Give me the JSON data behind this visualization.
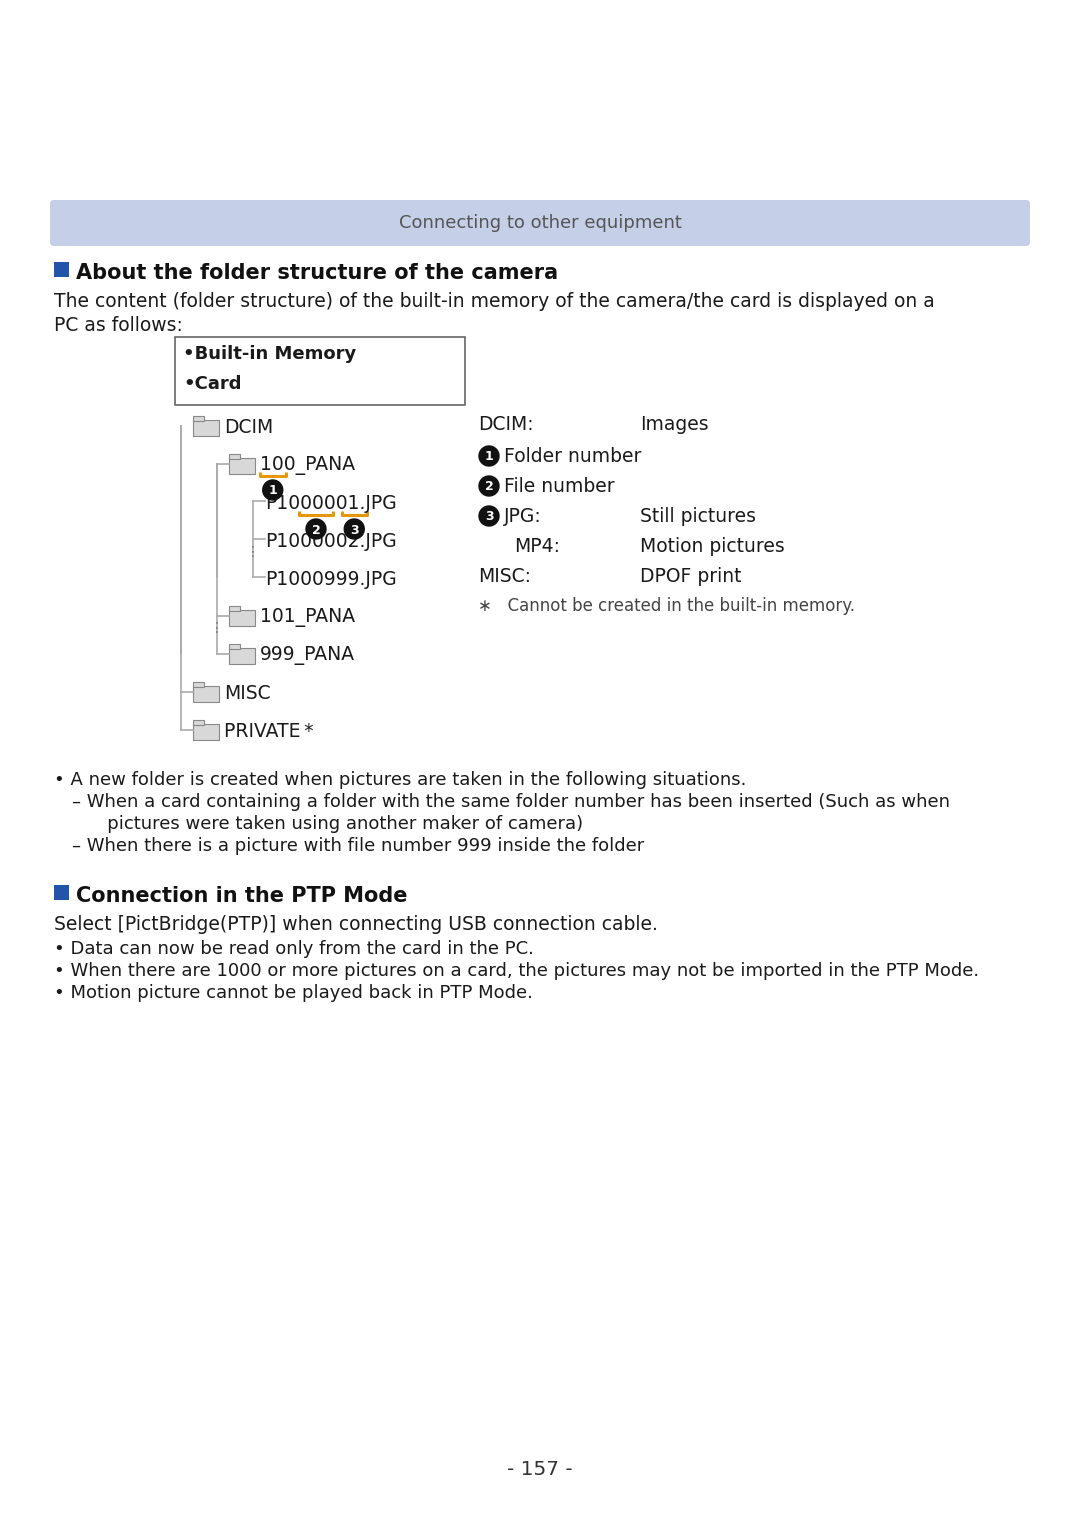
{
  "page_number": "- 157 -",
  "header_text": "Connecting to other equipment",
  "header_bg": "#c5cfe8",
  "header_text_color": "#555555",
  "section1_title": "About the folder structure of the camera",
  "section1_square_color": "#2255aa",
  "section1_body_line1": "The content (folder structure) of the built-in memory of the camera/the card is displayed on a",
  "section1_body_line2": "PC as follows:",
  "box_item1": "•Built-in Memory",
  "box_item2": "•Card",
  "tree_nodes": [
    {
      "level": 0,
      "label": "DCIM",
      "folder": true
    },
    {
      "level": 1,
      "label": "100_PANA",
      "folder": true
    },
    {
      "level": 2,
      "label": "P1000001.JPG",
      "folder": false
    },
    {
      "level": 2,
      "label": "P1000002.JPG",
      "folder": false
    },
    {
      "level": 2,
      "label": "P1000999.JPG",
      "folder": false
    },
    {
      "level": 1,
      "label": "101_PANA",
      "folder": true
    },
    {
      "level": 1,
      "label": "999_PANA",
      "folder": true
    },
    {
      "level": 0,
      "label": "MISC",
      "folder": true
    },
    {
      "level": 0,
      "label": "PRIVATE *",
      "folder": true
    }
  ],
  "ann_dcim_label": "DCIM:",
  "ann_dcim_value": "Images",
  "ann_items": [
    {
      "num": 1,
      "label": "Folder number",
      "value": ""
    },
    {
      "num": 2,
      "label": "File number",
      "value": ""
    },
    {
      "num": 3,
      "label": "JPG:",
      "value": "Still pictures"
    },
    {
      "num": 0,
      "label": "MP4:",
      "value": "Motion pictures"
    }
  ],
  "ann_misc_label": "MISC:",
  "ann_misc_value": "DPOF print",
  "ann_asterisk": "∗   Cannot be created in the built-in memory.",
  "orange_color": "#e8960a",
  "line_color": "#aaaaaa",
  "folder_face": "#d8d8d8",
  "folder_edge": "#888888",
  "bullet_notes": [
    "• A new folder is created when pictures are taken in the following situations.",
    "– When a card containing a folder with the same folder number has been inserted (Such as when",
    "   pictures were taken using another maker of camera)",
    "– When there is a picture with file number 999 inside the folder"
  ],
  "section2_title": "Connection in the PTP Mode",
  "section2_body": "Select [PictBridge(PTP)] when connecting USB connection cable.",
  "section2_bullets": [
    "• Data can now be read only from the card in the PC.",
    "• When there are 1000 or more pictures on a card, the pictures may not be imported in the PTP Mode.",
    "• Motion picture cannot be played back in PTP Mode."
  ],
  "bg_color": "#ffffff",
  "text_color": "#1a1a1a"
}
